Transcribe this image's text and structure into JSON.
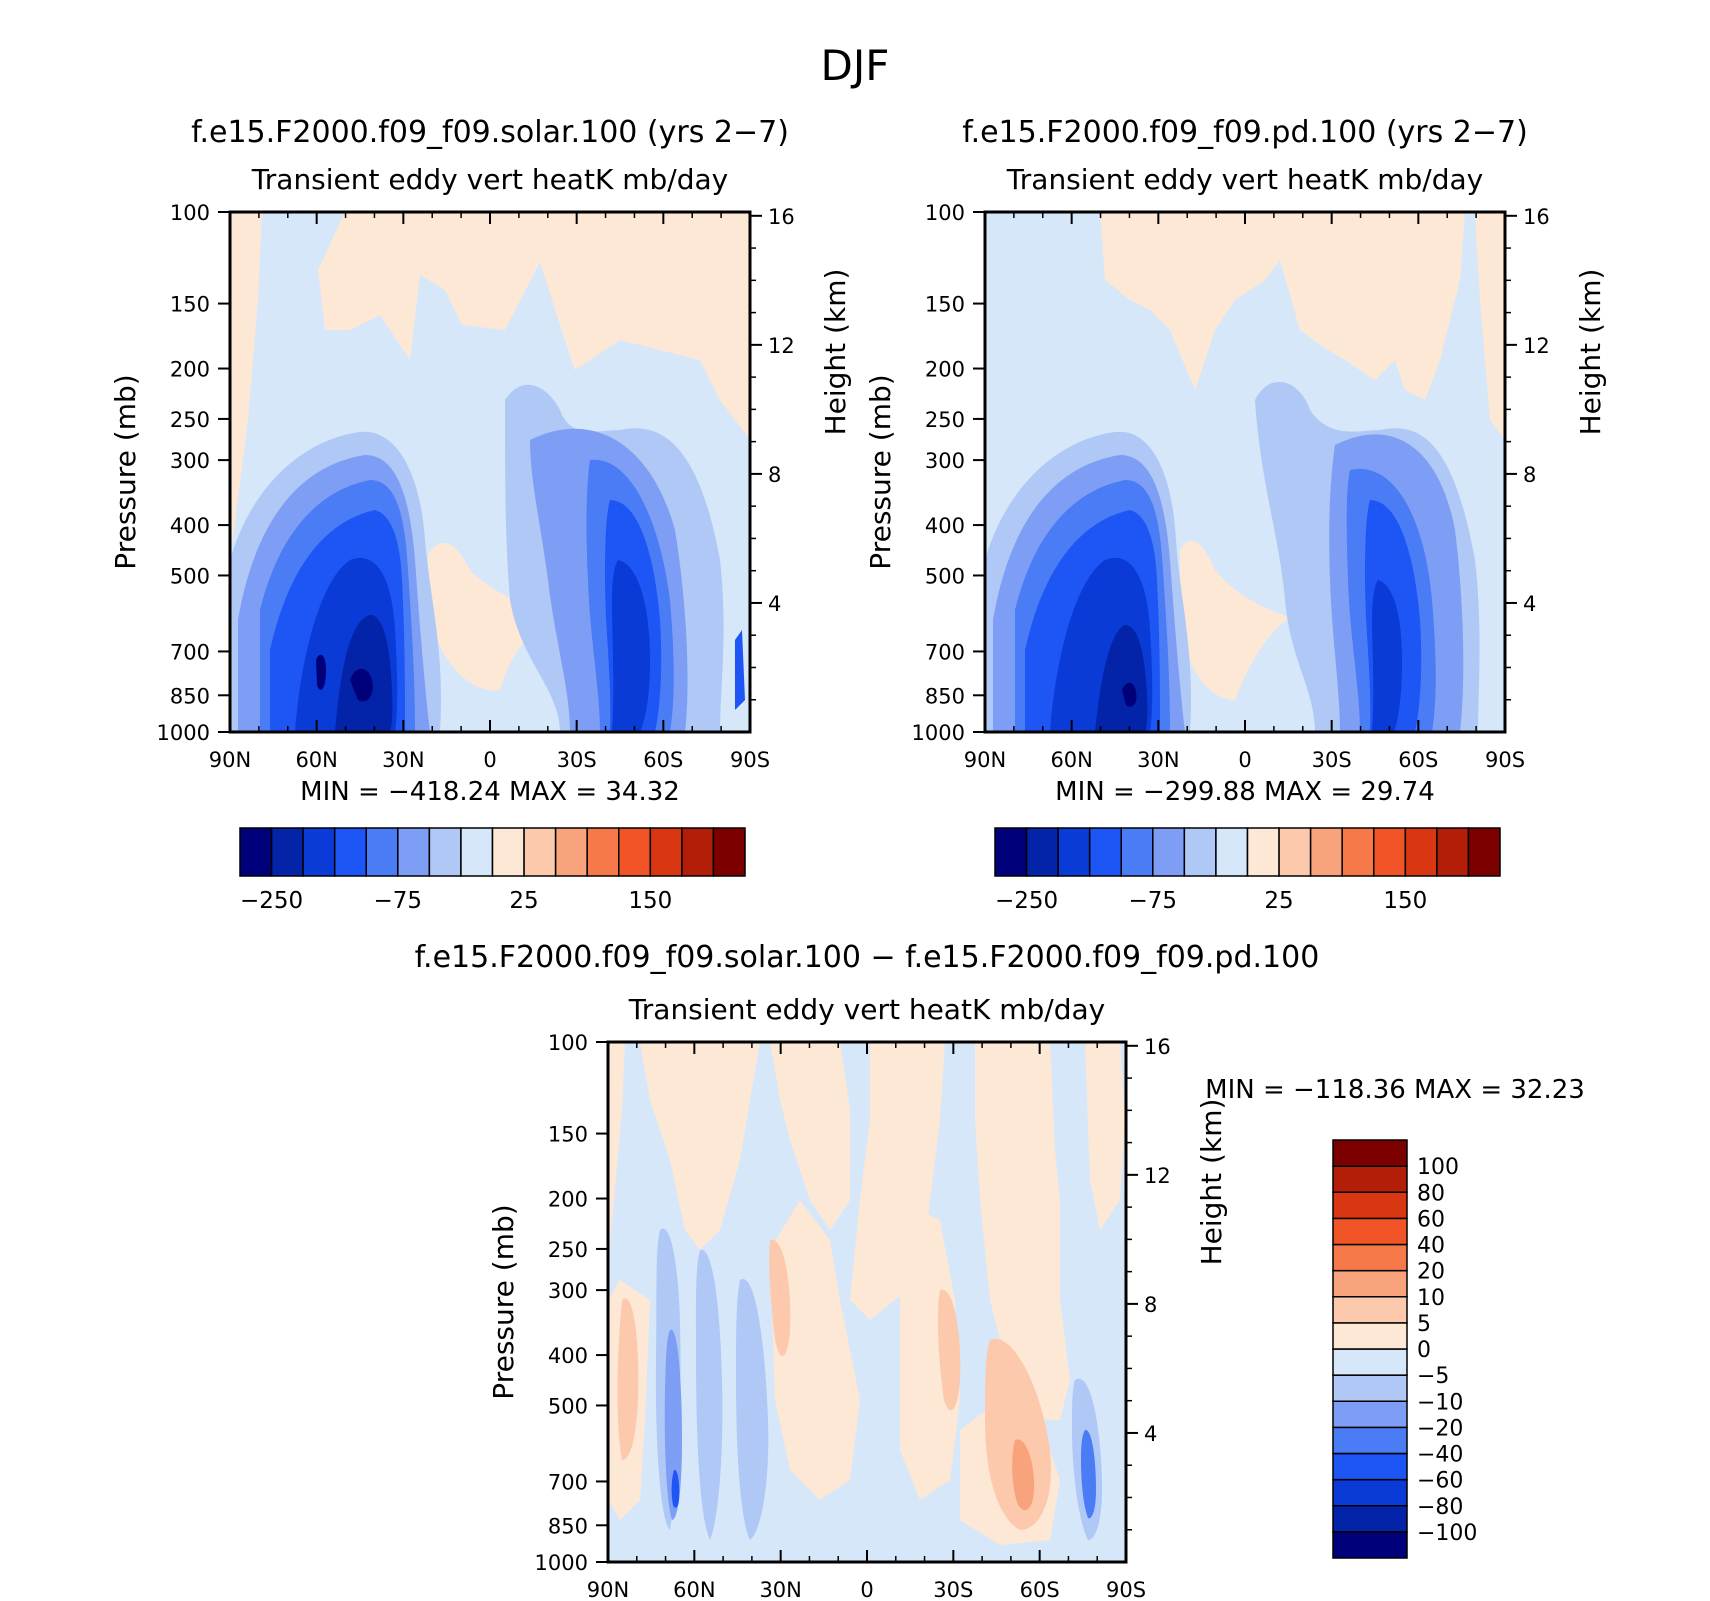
{
  "page_title": "DJF",
  "chart_data": [
    {
      "type": "heatmap",
      "title": "f.e15.F2000.f09_f09.solar.100 (yrs 2−7)",
      "subtitle": "Transient eddy vert heatK mb/day",
      "ylabel": "Pressure (mb)",
      "y2label": "Height (km)",
      "x_ticks": [
        "90N",
        "60N",
        "30N",
        "0",
        "30S",
        "60S",
        "90S"
      ],
      "y_ticks": [
        100,
        150,
        200,
        250,
        300,
        400,
        500,
        700,
        850,
        1000
      ],
      "y2_ticks": [
        4,
        8,
        12,
        16
      ],
      "ylim": [
        1000,
        100
      ],
      "stats": "MIN = −418.24   MAX =  34.32",
      "min": -418.24,
      "max": 34.32,
      "colorbar": {
        "orientation": "horizontal",
        "colors": [
          "#00007a",
          "#0323a8",
          "#0a3bd6",
          "#1e55f5",
          "#4a7cf6",
          "#7d9ef4",
          "#afc8f6",
          "#d6e7fa",
          "#fde8d6",
          "#fcc9ad",
          "#f9a37d",
          "#f6794a",
          "#f05427",
          "#d93612",
          "#b31e08",
          "#7d0000"
        ],
        "labels": [
          "−250",
          "−75",
          "25",
          "150"
        ]
      }
    },
    {
      "type": "heatmap",
      "title": "f.e15.F2000.f09_f09.pd.100 (yrs 2−7)",
      "subtitle": "Transient eddy vert heatK mb/day",
      "ylabel": "Pressure (mb)",
      "y2label": "Height (km)",
      "x_ticks": [
        "90N",
        "60N",
        "30N",
        "0",
        "30S",
        "60S",
        "90S"
      ],
      "y_ticks": [
        100,
        150,
        200,
        250,
        300,
        400,
        500,
        700,
        850,
        1000
      ],
      "y2_ticks": [
        4,
        8,
        12,
        16
      ],
      "ylim": [
        1000,
        100
      ],
      "stats": "MIN = −299.88   MAX =  29.74",
      "min": -299.88,
      "max": 29.74,
      "colorbar": {
        "orientation": "horizontal",
        "colors": [
          "#00007a",
          "#0323a8",
          "#0a3bd6",
          "#1e55f5",
          "#4a7cf6",
          "#7d9ef4",
          "#afc8f6",
          "#d6e7fa",
          "#fde8d6",
          "#fcc9ad",
          "#f9a37d",
          "#f6794a",
          "#f05427",
          "#d93612",
          "#b31e08",
          "#7d0000"
        ],
        "labels": [
          "−250",
          "−75",
          "25",
          "150"
        ]
      }
    },
    {
      "type": "heatmap",
      "title": "f.e15.F2000.f09_f09.solar.100 − f.e15.F2000.f09_f09.pd.100",
      "subtitle": "Transient eddy vert heatK mb/day",
      "ylabel": "Pressure (mb)",
      "y2label": "Height (km)",
      "x_ticks": [
        "90N",
        "60N",
        "30N",
        "0",
        "30S",
        "60S",
        "90S"
      ],
      "y_ticks": [
        100,
        150,
        200,
        250,
        300,
        400,
        500,
        700,
        850,
        1000
      ],
      "y2_ticks": [
        4,
        8,
        12,
        16
      ],
      "ylim": [
        1000,
        100
      ],
      "stats": "MIN = −118.36   MAX =  32.23",
      "min": -118.36,
      "max": 32.23,
      "colorbar": {
        "orientation": "vertical",
        "colors": [
          "#00007a",
          "#0323a8",
          "#0a3bd6",
          "#1e55f5",
          "#4a7cf6",
          "#7d9ef4",
          "#afc8f6",
          "#d6e7fa",
          "#fde8d6",
          "#fcc9ad",
          "#f9a37d",
          "#f6794a",
          "#f05427",
          "#d93612",
          "#b31e08",
          "#7d0000"
        ],
        "labels": [
          "100",
          "80",
          "60",
          "40",
          "20",
          "10",
          "5",
          "0",
          "−5",
          "−10",
          "−20",
          "−40",
          "−60",
          "−80",
          "−100"
        ]
      }
    }
  ]
}
